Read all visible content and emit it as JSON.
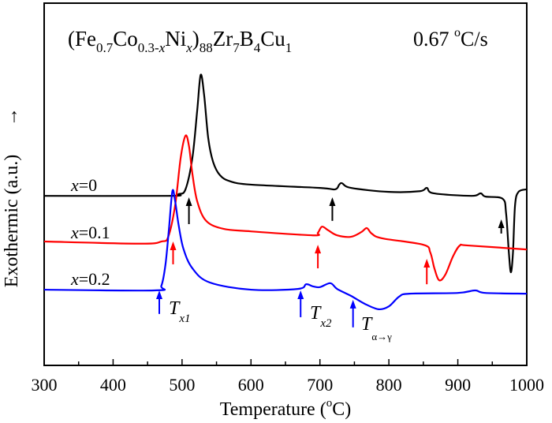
{
  "chart_data": {
    "type": "line",
    "title_parts": {
      "open": "(Fe",
      "s1": "0.7",
      "co": "Co",
      "s2": "0.3-",
      "s2x": "x",
      "ni": "Ni",
      "s3x": "x",
      "close": ")",
      "s4": "88",
      "zr": "Zr",
      "s5": "7",
      "b": "B",
      "s6": "4",
      "cu": "Cu",
      "s7": "1"
    },
    "rate_label": {
      "value": "0.67 ",
      "sup": "o",
      "unit": "C/s"
    },
    "xlabel": {
      "text": "Temperature (",
      "sup": "o",
      "end": "C)"
    },
    "ylabel": "Exothermic (a.u.)",
    "ylabel_arrow": "→",
    "xlim": [
      300,
      1000
    ],
    "ylim": [
      0,
      100
    ],
    "y_units": "arbitrary",
    "xticks": [
      300,
      400,
      500,
      600,
      700,
      800,
      900,
      1000
    ],
    "xtick_labels": [
      "300",
      "400",
      "500",
      "600",
      "700",
      "800",
      "900",
      "1000"
    ],
    "grid": false,
    "series": [
      {
        "name": "x=0",
        "label_var": "x",
        "label_val": "=0",
        "color": "#000000",
        "points": [
          [
            300,
            46.8
          ],
          [
            480,
            46.8
          ],
          [
            495,
            47.3
          ],
          [
            505,
            48.6
          ],
          [
            515,
            57.3
          ],
          [
            522,
            70.4
          ],
          [
            527,
            80.2
          ],
          [
            532,
            74.7
          ],
          [
            538,
            62.7
          ],
          [
            545,
            56.2
          ],
          [
            555,
            52.5
          ],
          [
            570,
            50.8
          ],
          [
            600,
            49.9
          ],
          [
            700,
            49
          ],
          [
            722,
            48.6
          ],
          [
            728,
            49.9
          ],
          [
            732,
            50.3
          ],
          [
            745,
            49
          ],
          [
            800,
            47.9
          ],
          [
            845,
            48.1
          ],
          [
            855,
            49
          ],
          [
            865,
            47.5
          ],
          [
            920,
            46.8
          ],
          [
            933,
            47.5
          ],
          [
            940,
            46.6
          ],
          [
            965,
            46
          ],
          [
            970,
            42
          ],
          [
            974,
            31.2
          ],
          [
            977,
            25.7
          ],
          [
            980,
            31.2
          ],
          [
            983,
            44.2
          ],
          [
            988,
            47.9
          ],
          [
            1000,
            48.6
          ]
        ],
        "arrows": [
          [
            510,
            46.4,
            39
          ],
          [
            718,
            46.4,
            39.9
          ],
          [
            963,
            40.3,
            36.4
          ]
        ]
      },
      {
        "name": "x=0.1",
        "label_var": "x",
        "label_val": "=0.1",
        "color": "#ff0000",
        "points": [
          [
            300,
            34.2
          ],
          [
            440,
            33.6
          ],
          [
            470,
            34.2
          ],
          [
            480,
            35.5
          ],
          [
            490,
            44.2
          ],
          [
            498,
            57.3
          ],
          [
            505,
            63.4
          ],
          [
            510,
            60.6
          ],
          [
            515,
            52.9
          ],
          [
            522,
            45.3
          ],
          [
            535,
            39.9
          ],
          [
            560,
            37.7
          ],
          [
            600,
            37
          ],
          [
            690,
            35.9
          ],
          [
            697,
            36.6
          ],
          [
            703,
            38.3
          ],
          [
            712,
            37.3
          ],
          [
            725,
            35.9
          ],
          [
            745,
            35.5
          ],
          [
            760,
            36.8
          ],
          [
            768,
            37.9
          ],
          [
            775,
            36.4
          ],
          [
            790,
            35.1
          ],
          [
            850,
            33.3
          ],
          [
            860,
            31.2
          ],
          [
            866,
            26.8
          ],
          [
            873,
            23.5
          ],
          [
            882,
            25.1
          ],
          [
            893,
            30.1
          ],
          [
            903,
            33.1
          ],
          [
            915,
            33.1
          ],
          [
            1000,
            32
          ]
        ],
        "arrows": [
          [
            487,
            34.2,
            27.9
          ],
          [
            697,
            33.3,
            26.8
          ],
          [
            855,
            29.4,
            22.4
          ]
        ]
      },
      {
        "name": "x=0.2",
        "label_var": "x",
        "label_val": "=0.2",
        "color": "#0000ff",
        "points": [
          [
            300,
            20.9
          ],
          [
            460,
            20.7
          ],
          [
            470,
            22
          ],
          [
            476,
            27.9
          ],
          [
            481,
            37.7
          ],
          [
            486,
            48.1
          ],
          [
            490,
            45.3
          ],
          [
            495,
            38.8
          ],
          [
            502,
            32.2
          ],
          [
            515,
            26.8
          ],
          [
            540,
            22.9
          ],
          [
            600,
            20.9
          ],
          [
            668,
            21.1
          ],
          [
            680,
            22.4
          ],
          [
            690,
            21.8
          ],
          [
            700,
            21.6
          ],
          [
            715,
            22.7
          ],
          [
            725,
            21.1
          ],
          [
            745,
            19.2
          ],
          [
            765,
            17
          ],
          [
            785,
            15.5
          ],
          [
            800,
            16.3
          ],
          [
            815,
            19
          ],
          [
            830,
            19.8
          ],
          [
            900,
            20
          ],
          [
            925,
            20.7
          ],
          [
            940,
            20
          ],
          [
            1000,
            19.8
          ]
        ],
        "arrows": [
          [
            467,
            20.7,
            14.2
          ],
          [
            672,
            20.7,
            13.3
          ],
          [
            748,
            18.1,
            10.5
          ]
        ]
      }
    ],
    "annotations": [
      {
        "main": "T",
        "sub": "x1"
      },
      {
        "main": "T",
        "sub": "x2"
      },
      {
        "main": "T",
        "sub": "α→γ"
      }
    ]
  }
}
